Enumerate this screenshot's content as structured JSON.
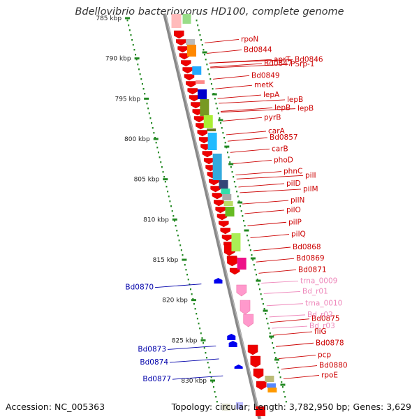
{
  "title": "Bdellovibrio bacteriovorus HD100, complete genome",
  "accession": "Accession: NC_005363",
  "summary": "Topology: circular; Length: 3,782,950 bp; Genes: 3,629",
  "colors": {
    "forward_label": "#cc0000",
    "reverse_label": "#0000aa",
    "rna_label": "#ee88bb",
    "tick": "#228822",
    "backbone": "#888888"
  },
  "scale": {
    "unit": "kbp",
    "ticks": [
      {
        "kbp": 785,
        "label": "785 kbp"
      },
      {
        "kbp": 790,
        "label": "790 kbp"
      },
      {
        "kbp": 795,
        "label": "795 kbp"
      },
      {
        "kbp": 800,
        "label": "800 kbp"
      },
      {
        "kbp": 805,
        "label": "805 kbp"
      },
      {
        "kbp": 810,
        "label": "810 kbp"
      },
      {
        "kbp": 815,
        "label": "815 kbp"
      },
      {
        "kbp": 820,
        "label": "820 kbp"
      },
      {
        "kbp": 825,
        "label": "825 kbp"
      },
      {
        "kbp": 830,
        "label": "830 kbp"
      }
    ]
  },
  "forward_labels": [
    {
      "name": "rpoN",
      "kbp": 787.9
    },
    {
      "name": "Bd0844",
      "kbp": 789.2
    },
    {
      "name": "aprT",
      "kbp": 790.4
    },
    {
      "name": "Bd0846",
      "kbp": 790.4
    },
    {
      "name": "Bd0847",
      "kbp": 790.9
    },
    {
      "name": "PSrp-1",
      "kbp": 791.0
    },
    {
      "name": "Bd0849",
      "kbp": 792.4
    },
    {
      "name": "metK",
      "kbp": 793.6
    },
    {
      "name": "lepA",
      "kbp": 794.8
    },
    {
      "name": "lepB",
      "kbp": 795.4
    },
    {
      "name": "lepB",
      "kbp": 796.4
    },
    {
      "name": "lepB",
      "kbp": 796.5
    },
    {
      "name": "pyrB",
      "kbp": 797.6
    },
    {
      "name": "carA",
      "kbp": 799.3
    },
    {
      "name": "Bd0857",
      "kbp": 800.1
    },
    {
      "name": "carB",
      "kbp": 801.5
    },
    {
      "name": "phoD",
      "kbp": 802.9
    },
    {
      "name": "phnC",
      "kbp": 804.3
    },
    {
      "name": "pilI",
      "kbp": 804.8
    },
    {
      "name": "pilD",
      "kbp": 805.8
    },
    {
      "name": "pilM",
      "kbp": 806.5
    },
    {
      "name": "pilN",
      "kbp": 807.9
    },
    {
      "name": "pilO",
      "kbp": 809.1
    },
    {
      "name": "pilP",
      "kbp": 810.6
    },
    {
      "name": "pilQ",
      "kbp": 812.1
    },
    {
      "name": "Bd0868",
      "kbp": 813.7
    },
    {
      "name": "Bd0869",
      "kbp": 815.1
    },
    {
      "name": "Bd0871",
      "kbp": 816.5
    },
    {
      "name": "Bd0875",
      "kbp": 822.6
    },
    {
      "name": "fliG",
      "kbp": 824.2
    },
    {
      "name": "Bd0878",
      "kbp": 825.6
    },
    {
      "name": "pcp",
      "kbp": 827.1
    },
    {
      "name": "Bd0880",
      "kbp": 828.4
    },
    {
      "name": "rpoE",
      "kbp": 829.6
    }
  ],
  "rna_labels": [
    {
      "name": "trna_0009",
      "kbp": 817.9
    },
    {
      "name": "Bd_r01",
      "kbp": 819.2
    },
    {
      "name": "trna_0010",
      "kbp": 820.7
    },
    {
      "name": "Bd_r02",
      "kbp": 822.1
    },
    {
      "name": "Bd_r03",
      "kbp": 823.5
    }
  ],
  "reverse_labels": [
    {
      "name": "Bd0870",
      "kbp": 818.7
    },
    {
      "name": "Bd0873",
      "kbp": 826.4
    },
    {
      "name": "Bd0874",
      "kbp": 828.0
    },
    {
      "name": "Bd0877",
      "kbp": 830.1
    }
  ]
}
